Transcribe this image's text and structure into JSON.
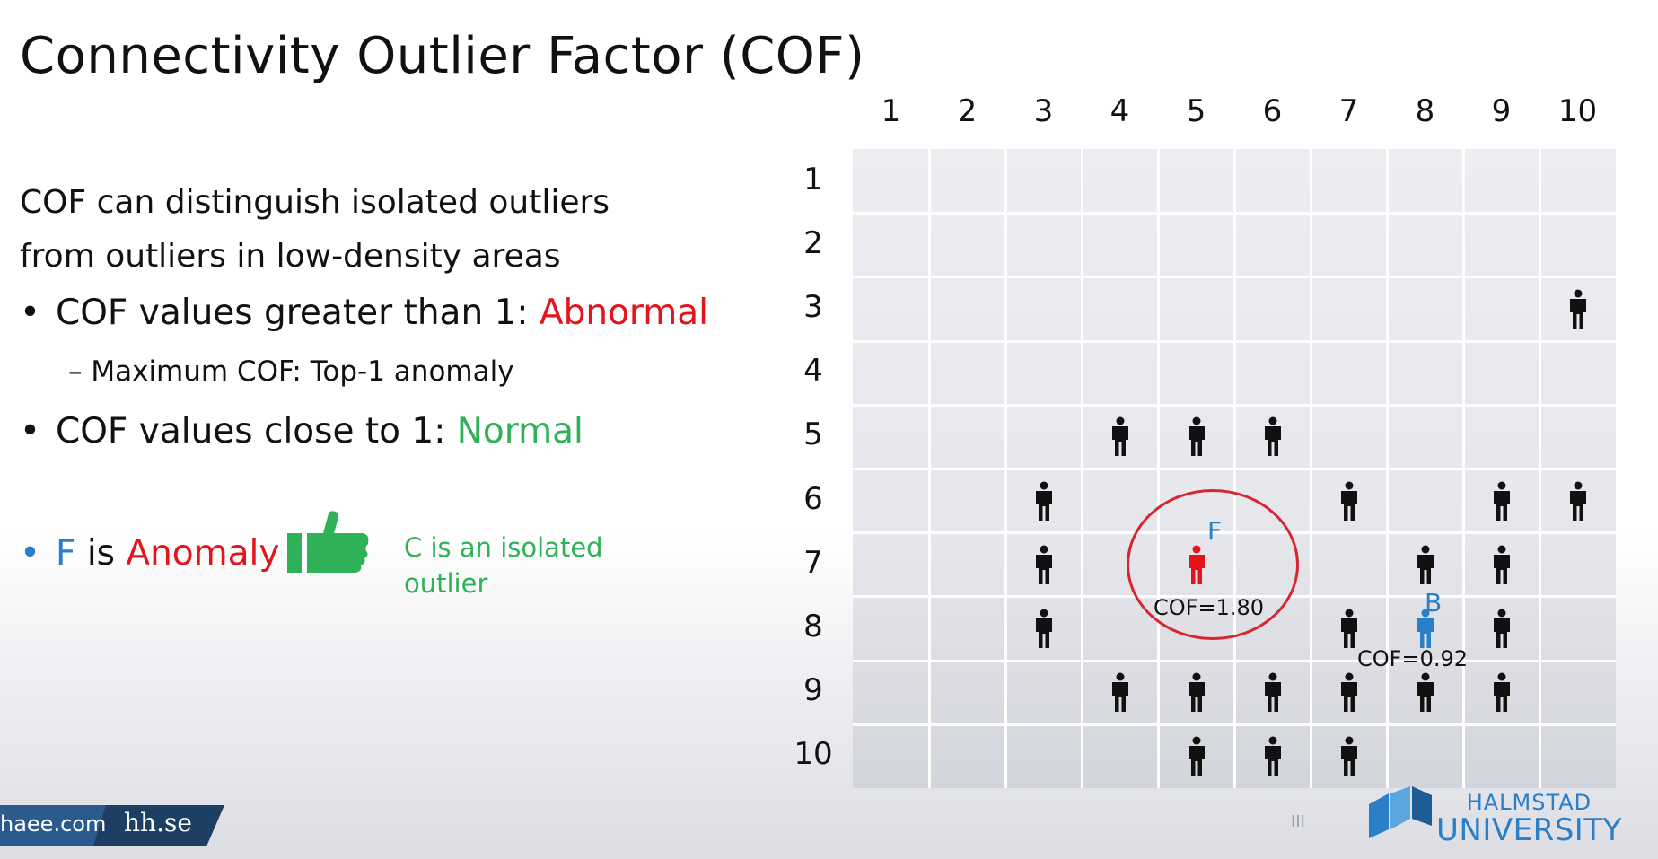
{
  "title": "Connectivity Outlier Factor (COF)",
  "intro": {
    "line1": "COF can distinguish isolated outliers",
    "line2": "from outliers in low-density areas"
  },
  "bullets": [
    {
      "text": "COF values greater than 1: ",
      "highlight": "Abnormal"
    },
    {
      "text": "COF values close to 1: ",
      "highlight": "Normal"
    }
  ],
  "sub_bullet": "– Maximum COF: Top-1 anomaly",
  "f_line": {
    "point": "F",
    "is": " is ",
    "label": "Anomaly"
  },
  "isolated_note": "C is an isolated outlier",
  "grid": {
    "col_labels": [
      "1",
      "2",
      "3",
      "4",
      "5",
      "6",
      "7",
      "8",
      "9",
      "10"
    ],
    "row_labels": [
      "1",
      "2",
      "3",
      "4",
      "5",
      "6",
      "7",
      "8",
      "9",
      "10"
    ],
    "people": [
      {
        "col": 10,
        "row": 3
      },
      {
        "col": 4,
        "row": 5
      },
      {
        "col": 5,
        "row": 5
      },
      {
        "col": 6,
        "row": 5
      },
      {
        "col": 3,
        "row": 6
      },
      {
        "col": 7,
        "row": 6
      },
      {
        "col": 9,
        "row": 6
      },
      {
        "col": 10,
        "row": 6
      },
      {
        "col": 3,
        "row": 7
      },
      {
        "col": 5,
        "row": 7,
        "id": "F"
      },
      {
        "col": 8,
        "row": 7
      },
      {
        "col": 9,
        "row": 7
      },
      {
        "col": 3,
        "row": 8
      },
      {
        "col": 7,
        "row": 8
      },
      {
        "col": 8,
        "row": 8,
        "id": "B"
      },
      {
        "col": 9,
        "row": 8
      },
      {
        "col": 4,
        "row": 9
      },
      {
        "col": 5,
        "row": 9
      },
      {
        "col": 6,
        "row": 9
      },
      {
        "col": 7,
        "row": 9
      },
      {
        "col": 8,
        "row": 9
      },
      {
        "col": 9,
        "row": 9
      },
      {
        "col": 5,
        "row": 10
      },
      {
        "col": 6,
        "row": 10
      },
      {
        "col": 7,
        "row": 10
      }
    ],
    "labels": {
      "F": {
        "name": "F",
        "cof": "COF=1.80",
        "color": "#e3141b",
        "label_color": "#2a7fc7"
      },
      "B": {
        "name": "B",
        "cof": "COF=0.92",
        "color": "#2a7fc7",
        "label_color": "#2a7fc7"
      }
    }
  },
  "footer": {
    "left": "haee.com",
    "right": "hh.se",
    "pager": "III"
  },
  "logo": {
    "line1": "HALMSTAD",
    "line2": "UNIVERSITY"
  },
  "colors": {
    "abnormal": "#e3141b",
    "normal": "#2fb157",
    "accent_blue": "#2a7fc7"
  },
  "icons": {
    "thumb": "thumbs-up-icon",
    "person": "person-icon"
  }
}
